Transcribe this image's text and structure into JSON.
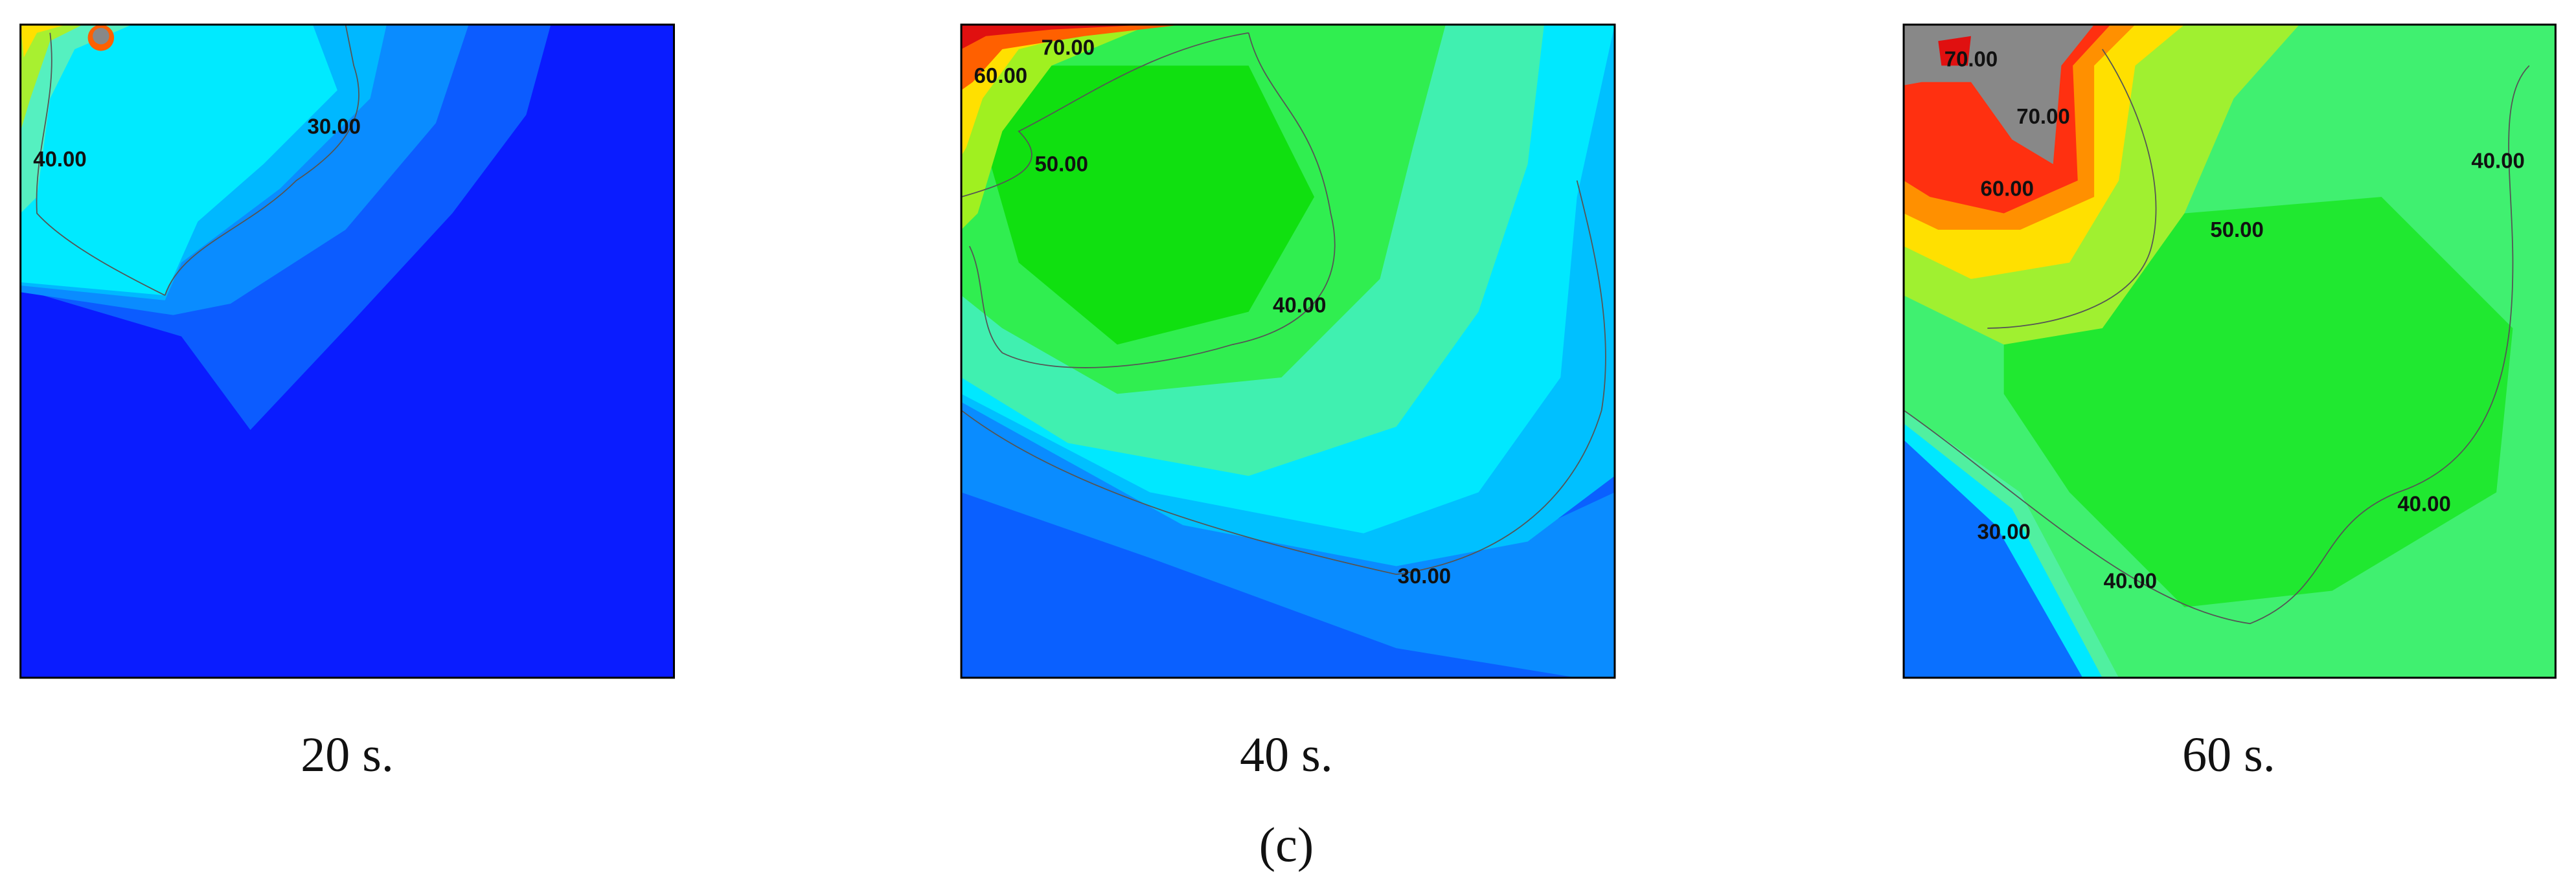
{
  "panels": [
    {
      "caption": "20 s.",
      "contour_labels": [
        "40.00",
        "30.00"
      ]
    },
    {
      "caption": "40 s.",
      "contour_labels": [
        "70.00",
        "60.00",
        "50.00",
        "40.00",
        "30.00"
      ]
    },
    {
      "caption": "60 s.",
      "contour_labels": [
        "70.00",
        "70.00",
        "60.00",
        "50.00",
        "40.00",
        "40.00",
        "30.00",
        "40.00"
      ]
    }
  ],
  "figure_label": "(c)"
}
